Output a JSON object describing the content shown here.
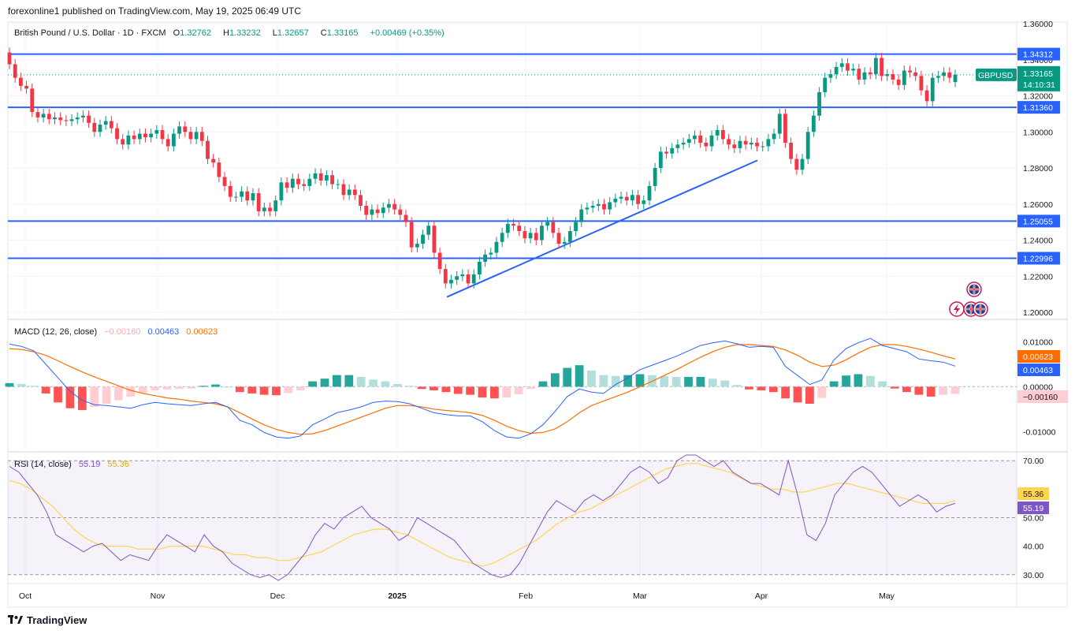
{
  "header": {
    "publisher_line": "forexonline1 published on TradingView.com, May 19, 2025 06:49 UTC"
  },
  "price_legend": {
    "symbol_line": "British Pound / U.S. Dollar · 1D · FXCM",
    "open_label": "O",
    "open": "1.32762",
    "high_label": "H",
    "high": "1.33232",
    "low_label": "L",
    "low": "1.32657",
    "close_label": "C",
    "close": "1.33165",
    "change": "+0.00469 (+0.35%)"
  },
  "macd_legend": {
    "title": "MACD (12, 26, close)",
    "hist": "−0.00160",
    "macd": "0.00463",
    "signal": "0.00623"
  },
  "rsi_legend": {
    "title": "RSI (14, close)",
    "rsi": "55.19",
    "ma": "55.36"
  },
  "last_price_tag": {
    "symbol": "GBPUSD",
    "price": "1.33165",
    "countdown": "14:10:31"
  },
  "footer": {
    "brand": "TradingView"
  },
  "colors": {
    "up": "#089981",
    "down": "#F23645",
    "level_line": "#2962FF",
    "macd_line": "#2962FF",
    "signal_line": "#FF6D00",
    "rsi_line": "#7E57C2",
    "rsi_ma": "#FFD54F",
    "hist_pos": "#26A69A",
    "hist_neg": "#FF5252"
  },
  "icons": [
    "uk-flag-icon",
    "uk-flag-icon",
    "lightning-icon"
  ],
  "chart_data": [
    {
      "type": "candlestick",
      "title": "British Pound / U.S. Dollar · 1D · FXCM",
      "x_labels": [
        "Oct",
        "Nov",
        "Dec",
        "2025",
        "Feb",
        "Mar",
        "Apr",
        "May"
      ],
      "y_ticks": [
        "1.36000",
        "1.34000",
        "1.32000",
        "1.30000",
        "1.28000",
        "1.26000",
        "1.24000",
        "1.22000",
        "1.20000"
      ],
      "ylim": [
        1.2,
        1.36
      ],
      "horizontal_levels": [
        {
          "label": "1.34312",
          "value": 1.34312
        },
        {
          "label": "1.31360",
          "value": 1.3136
        },
        {
          "label": "1.25055",
          "value": 1.25055
        },
        {
          "label": "1.22996",
          "value": 1.22996
        }
      ],
      "trendline": {
        "from": {
          "date": "2025-01-13",
          "value": 1.2085
        },
        "to": {
          "date": "2025-03-31",
          "value": 1.2842
        }
      },
      "last_price": 1.33165,
      "closes": [
        1.3375,
        1.33,
        1.3255,
        1.324,
        1.311,
        1.308,
        1.31,
        1.307,
        1.308,
        1.3065,
        1.306,
        1.307,
        1.308,
        1.309,
        1.305,
        1.3,
        1.304,
        1.306,
        1.302,
        1.296,
        1.293,
        1.298,
        1.296,
        1.299,
        1.297,
        1.299,
        1.301,
        1.296,
        1.292,
        1.299,
        1.303,
        1.3,
        1.296,
        1.3,
        1.295,
        1.285,
        1.283,
        1.275,
        1.27,
        1.264,
        1.264,
        1.267,
        1.262,
        1.266,
        1.256,
        1.258,
        1.256,
        1.262,
        1.272,
        1.269,
        1.274,
        1.271,
        1.27,
        1.274,
        1.277,
        1.273,
        1.276,
        1.271,
        1.271,
        1.265,
        1.268,
        1.265,
        1.259,
        1.254,
        1.257,
        1.255,
        1.258,
        1.26,
        1.257,
        1.254,
        1.25,
        1.236,
        1.238,
        1.243,
        1.248,
        1.233,
        1.224,
        1.216,
        1.218,
        1.22,
        1.221,
        1.216,
        1.221,
        1.228,
        1.232,
        1.233,
        1.239,
        1.244,
        1.249,
        1.248,
        1.245,
        1.241,
        1.244,
        1.24,
        1.248,
        1.25,
        1.244,
        1.238,
        1.239,
        1.245,
        1.25,
        1.257,
        1.258,
        1.259,
        1.26,
        1.257,
        1.261,
        1.263,
        1.264,
        1.262,
        1.265,
        1.26,
        1.262,
        1.27,
        1.28,
        1.289,
        1.288,
        1.291,
        1.293,
        1.294,
        1.296,
        1.298,
        1.294,
        1.292,
        1.298,
        1.301,
        1.296,
        1.293,
        1.291,
        1.295,
        1.293,
        1.294,
        1.292,
        1.292,
        1.296,
        1.299,
        1.31,
        1.294,
        1.285,
        1.279,
        1.285,
        1.3,
        1.309,
        1.322,
        1.33,
        1.332,
        1.336,
        1.338,
        1.334,
        1.335,
        1.329,
        1.333,
        1.332,
        1.341,
        1.331,
        1.332,
        1.329,
        1.326,
        1.334,
        1.333,
        1.331,
        1.323,
        1.317,
        1.33,
        1.331,
        1.333,
        1.33,
        1.3317
      ],
      "opens": [
        1.344,
        1.3375,
        1.33,
        1.3255,
        1.324,
        1.311,
        1.308,
        1.31,
        1.307,
        1.308,
        1.3065,
        1.306,
        1.307,
        1.308,
        1.309,
        1.305,
        1.3,
        1.304,
        1.306,
        1.302,
        1.296,
        1.293,
        1.298,
        1.296,
        1.299,
        1.297,
        1.299,
        1.301,
        1.296,
        1.292,
        1.299,
        1.303,
        1.3,
        1.296,
        1.3,
        1.295,
        1.285,
        1.283,
        1.275,
        1.27,
        1.264,
        1.264,
        1.267,
        1.262,
        1.266,
        1.256,
        1.258,
        1.256,
        1.262,
        1.272,
        1.269,
        1.274,
        1.271,
        1.27,
        1.274,
        1.277,
        1.273,
        1.276,
        1.271,
        1.271,
        1.265,
        1.268,
        1.265,
        1.259,
        1.254,
        1.257,
        1.255,
        1.258,
        1.26,
        1.257,
        1.254,
        1.25,
        1.236,
        1.238,
        1.243,
        1.248,
        1.233,
        1.224,
        1.216,
        1.218,
        1.22,
        1.221,
        1.216,
        1.221,
        1.228,
        1.232,
        1.233,
        1.239,
        1.244,
        1.249,
        1.248,
        1.245,
        1.241,
        1.244,
        1.24,
        1.248,
        1.25,
        1.244,
        1.238,
        1.239,
        1.245,
        1.25,
        1.257,
        1.258,
        1.259,
        1.26,
        1.257,
        1.261,
        1.263,
        1.264,
        1.262,
        1.265,
        1.26,
        1.262,
        1.27,
        1.28,
        1.289,
        1.288,
        1.291,
        1.293,
        1.294,
        1.296,
        1.298,
        1.294,
        1.292,
        1.298,
        1.301,
        1.296,
        1.293,
        1.291,
        1.295,
        1.293,
        1.294,
        1.292,
        1.292,
        1.296,
        1.299,
        1.31,
        1.294,
        1.285,
        1.279,
        1.285,
        1.3,
        1.309,
        1.322,
        1.33,
        1.332,
        1.336,
        1.338,
        1.334,
        1.335,
        1.329,
        1.333,
        1.332,
        1.341,
        1.331,
        1.332,
        1.329,
        1.326,
        1.334,
        1.333,
        1.331,
        1.323,
        1.317,
        1.33,
        1.331,
        1.333,
        1.3276
      ]
    },
    {
      "type": "line",
      "title": "MACD (12, 26, close)",
      "y_ticks": [
        "0.01000",
        "0.00000",
        "-0.01000"
      ],
      "ylim": [
        -0.014,
        0.0145
      ],
      "last_values": {
        "histogram": -0.0016,
        "macd": 0.00463,
        "signal": 0.00623
      },
      "series": [
        {
          "name": "MACD",
          "values": [
            0.0095,
            0.009,
            0.008,
            0.005,
            0.002,
            -0.001,
            -0.003,
            -0.004,
            -0.0042,
            -0.0045,
            -0.0048,
            -0.004,
            -0.0035,
            -0.0038,
            -0.004,
            -0.0042,
            -0.0038,
            -0.0035,
            -0.0045,
            -0.0075,
            -0.0085,
            -0.0102,
            -0.0112,
            -0.0115,
            -0.011,
            -0.0085,
            -0.0072,
            -0.0058,
            -0.0052,
            -0.0045,
            -0.0035,
            -0.0032,
            -0.0033,
            -0.0038,
            -0.0048,
            -0.0058,
            -0.0062,
            -0.0065,
            -0.0065,
            -0.0078,
            -0.0098,
            -0.0112,
            -0.0115,
            -0.0105,
            -0.0085,
            -0.0055,
            -0.0022,
            -0.0005,
            -0.0012,
            -0.0015,
            0.0005,
            0.002,
            0.0038,
            0.0048,
            0.0058,
            0.0068,
            0.008,
            0.0092,
            0.0098,
            0.0102,
            0.0096,
            0.0088,
            0.009,
            0.0088,
            0.0045,
            0.0025,
            0.0005,
            0.0015,
            0.006,
            0.0085,
            0.0098,
            0.0108,
            0.0092,
            0.0085,
            0.0078,
            0.0062,
            0.0058,
            0.0055,
            0.0046
          ]
        },
        {
          "name": "Signal",
          "values": [
            0.0085,
            0.0083,
            0.0078,
            0.007,
            0.0058,
            0.0045,
            0.0033,
            0.0022,
            0.0012,
            0.0002,
            -0.0008,
            -0.0015,
            -0.002,
            -0.0025,
            -0.0028,
            -0.0032,
            -0.0035,
            -0.0038,
            -0.0045,
            -0.0058,
            -0.0072,
            -0.0085,
            -0.0095,
            -0.0102,
            -0.0106,
            -0.0105,
            -0.0098,
            -0.0088,
            -0.0078,
            -0.0068,
            -0.0058,
            -0.0048,
            -0.0042,
            -0.0042,
            -0.0045,
            -0.005,
            -0.0053,
            -0.0055,
            -0.0058,
            -0.0064,
            -0.0075,
            -0.0088,
            -0.0098,
            -0.0104,
            -0.0102,
            -0.0094,
            -0.0078,
            -0.0058,
            -0.0042,
            -0.0032,
            -0.0022,
            -0.0012,
            0.0,
            0.0012,
            0.0025,
            0.0038,
            0.0052,
            0.0066,
            0.0078,
            0.0088,
            0.0094,
            0.0094,
            0.0092,
            0.009,
            0.0082,
            0.007,
            0.0055,
            0.0045,
            0.0048,
            0.006,
            0.0075,
            0.0088,
            0.0094,
            0.0094,
            0.009,
            0.0084,
            0.0077,
            0.0069,
            0.0062
          ]
        },
        {
          "name": "Histogram",
          "values": [
            0.0008,
            0.0006,
            0.0002,
            -0.0015,
            -0.0035,
            -0.0048,
            -0.0052,
            -0.0045,
            -0.0038,
            -0.003,
            -0.0022,
            -0.0014,
            -0.0008,
            -0.0006,
            -0.0005,
            -0.0004,
            0.0002,
            0.0005,
            0.0,
            -0.0012,
            -0.0015,
            -0.0018,
            -0.0019,
            -0.0014,
            -0.0008,
            0.0012,
            0.0018,
            0.0026,
            0.0026,
            0.0022,
            0.0016,
            0.0012,
            0.0006,
            0.0002,
            -0.0005,
            -0.0008,
            -0.0012,
            -0.0016,
            -0.0018,
            -0.0024,
            -0.0026,
            -0.0024,
            -0.0017,
            -0.0005,
            0.0012,
            0.003,
            0.0042,
            0.0048,
            0.0036,
            0.0026,
            0.0024,
            0.0026,
            0.0028,
            0.0026,
            0.0024,
            0.0022,
            0.0022,
            0.0022,
            0.0018,
            0.0014,
            0.0004,
            -0.0006,
            -0.0008,
            -0.0012,
            -0.0026,
            -0.0035,
            -0.0038,
            -0.0025,
            0.0012,
            0.0025,
            0.0028,
            0.0024,
            0.0012,
            -0.0004,
            -0.0012,
            -0.0018,
            -0.0022,
            -0.0018,
            -0.0016
          ]
        }
      ]
    },
    {
      "type": "line",
      "title": "RSI (14, close)",
      "y_ticks": [
        "70.00",
        "50.00",
        "40.00",
        "30.00"
      ],
      "ylim": [
        28,
        72
      ],
      "bands": [
        30,
        50,
        70
      ],
      "series": [
        {
          "name": "RSI",
          "values": [
            68,
            66,
            62,
            58,
            52,
            44,
            42,
            40,
            38,
            40,
            41,
            38,
            35,
            37,
            36,
            35,
            40,
            44,
            42,
            40,
            38,
            44,
            40,
            38,
            34,
            32,
            30,
            29,
            30,
            28,
            30,
            34,
            38,
            44,
            48,
            46,
            50,
            52,
            54,
            50,
            48,
            46,
            42,
            44,
            50,
            48,
            46,
            44,
            42,
            38,
            34,
            32,
            30,
            29,
            30,
            34,
            40,
            46,
            52,
            56,
            54,
            52,
            56,
            58,
            56,
            58,
            62,
            66,
            68,
            66,
            62,
            64,
            70,
            72,
            72,
            70,
            68,
            70,
            66,
            64,
            62,
            62,
            60,
            58,
            70,
            58,
            44,
            42,
            48,
            58,
            62,
            66,
            68,
            66,
            62,
            58,
            54,
            56,
            58,
            56,
            52,
            54,
            55
          ]
        },
        {
          "name": "RSI MA",
          "values": [
            63,
            62,
            60,
            57,
            54,
            50,
            46,
            43,
            41,
            40,
            40,
            40,
            39,
            39,
            39,
            40,
            40,
            40,
            40,
            39,
            38,
            37,
            37,
            36,
            36,
            35,
            35,
            36,
            37,
            38,
            40,
            42,
            44,
            45,
            46,
            46,
            45,
            44,
            42,
            40,
            38,
            36,
            35,
            34,
            33,
            34,
            36,
            38,
            40,
            42,
            45,
            48,
            50,
            52,
            53,
            55,
            57,
            59,
            61,
            63,
            65,
            67,
            68,
            69,
            69,
            68,
            67,
            66,
            64,
            62,
            61,
            60,
            60,
            59,
            59,
            60,
            61,
            62,
            62,
            61,
            60,
            59,
            58,
            57,
            56,
            55,
            55,
            55,
            56
          ]
        }
      ]
    }
  ]
}
